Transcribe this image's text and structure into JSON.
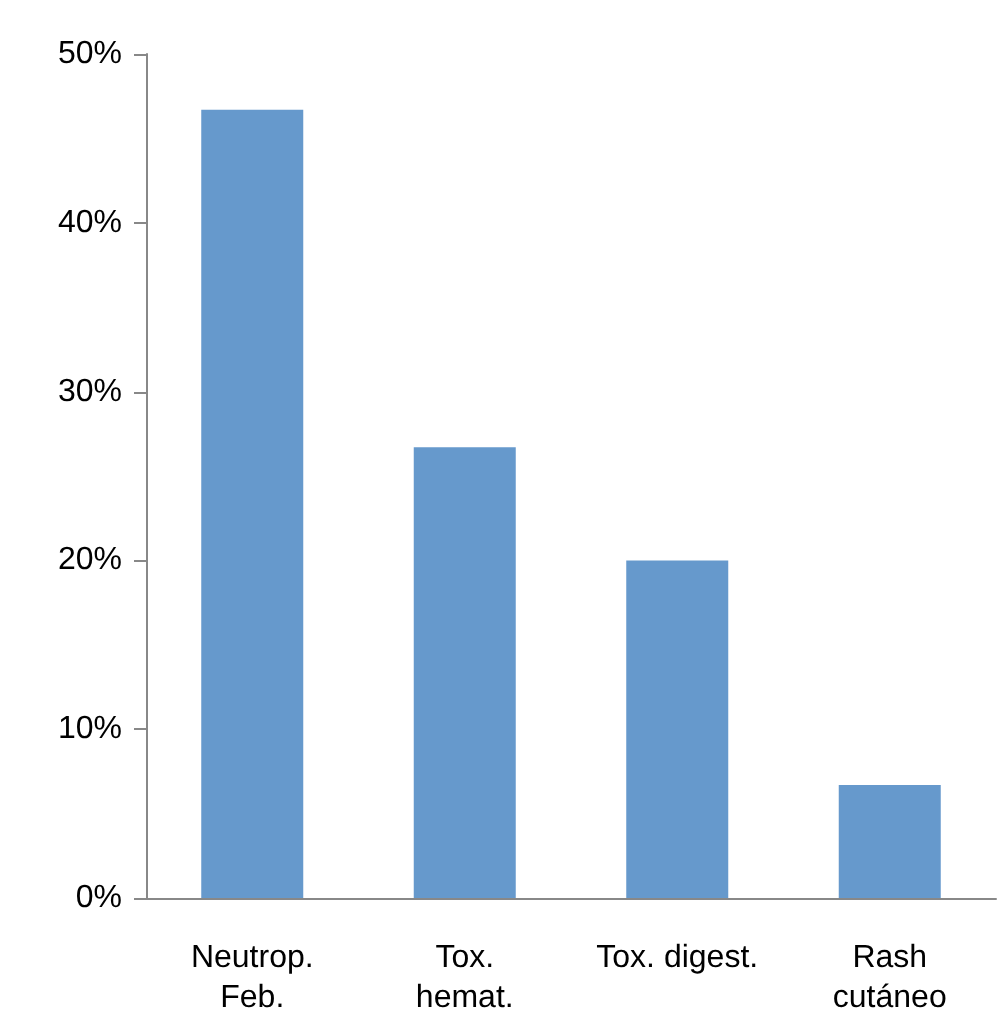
{
  "chart_data": {
    "type": "bar",
    "categories": [
      "Neutrop.\nFeb.",
      "Tox.\nhemat.",
      "Tox. digest.",
      "Rash\ncutáneo"
    ],
    "values": [
      46.7,
      26.7,
      20,
      6.7
    ],
    "color": "#6699cc",
    "ylim": [
      0,
      50
    ],
    "yticks": [
      {
        "value": 0,
        "label": "0%"
      },
      {
        "value": 10,
        "label": "10%"
      },
      {
        "value": 20,
        "label": "20%"
      },
      {
        "value": 30,
        "label": "30%"
      },
      {
        "value": 40,
        "label": "40%"
      },
      {
        "value": 50,
        "label": "50%"
      }
    ],
    "grid": false
  }
}
